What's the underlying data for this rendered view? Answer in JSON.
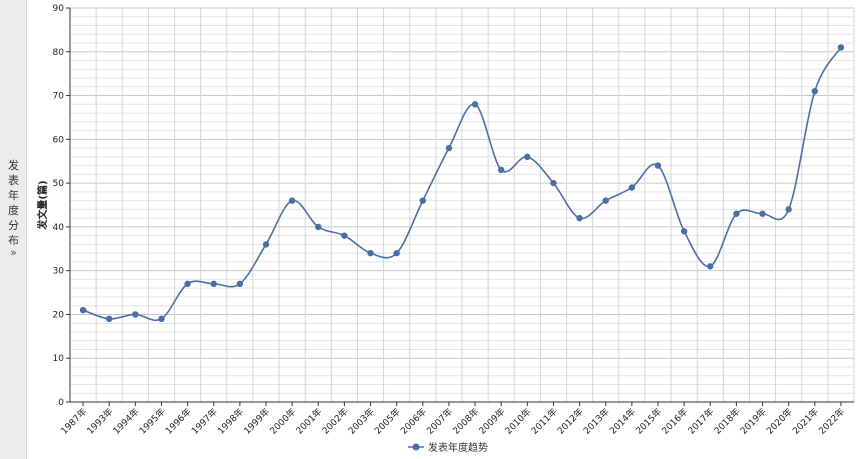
{
  "side_panel": {
    "chars": [
      "发",
      "表",
      "年",
      "度",
      "分",
      "布"
    ],
    "arrow": "»"
  },
  "chart_data": {
    "type": "line",
    "ylabel": "发文量(篇)",
    "ylim": [
      0,
      90
    ],
    "yticks": [
      0,
      10,
      20,
      30,
      40,
      50,
      60,
      70,
      80,
      90
    ],
    "smooth": true,
    "grid": true,
    "legend_position": "bottom-center",
    "categories": [
      "1987年",
      "1993年",
      "1994年",
      "1995年",
      "1996年",
      "1997年",
      "1998年",
      "1999年",
      "2000年",
      "2001年",
      "2002年",
      "2003年",
      "2005年",
      "2006年",
      "2007年",
      "2008年",
      "2009年",
      "2010年",
      "2011年",
      "2012年",
      "2013年",
      "2014年",
      "2015年",
      "2016年",
      "2017年",
      "2018年",
      "2019年",
      "2020年",
      "2021年",
      "2022年"
    ],
    "series": [
      {
        "name": "发表年度趋势",
        "color": "#4a6fa5",
        "values": [
          21,
          19,
          20,
          19,
          27,
          27,
          27,
          36,
          46,
          40,
          38,
          34,
          34,
          46,
          58,
          68,
          53,
          56,
          50,
          42,
          46,
          49,
          54,
          39,
          31,
          43,
          43,
          44,
          71,
          81
        ]
      }
    ]
  }
}
